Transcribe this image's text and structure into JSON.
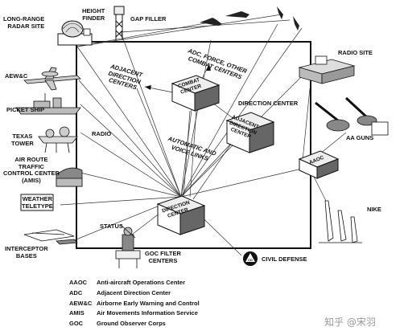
{
  "labels": {
    "long_range_radar": [
      "LONG-RANGE",
      "RADAR SITE"
    ],
    "height_finder": [
      "HEIGHT",
      "FINDER"
    ],
    "gap_filler": "GAP FILLER",
    "aew_c": "AEW&C",
    "picket_ship": "PICKET SHIP",
    "texas_tower": [
      "TEXAS",
      "TOWER"
    ],
    "air_route": [
      "AIR ROUTE",
      "TRAFFIC",
      "CONTROL CENTER",
      "(AMIS)"
    ],
    "weather_teletype": [
      "WEATHER",
      "TELETYPE"
    ],
    "interceptor_bases": [
      "INTERCEPTOR",
      "BASES"
    ],
    "radio": "RADIO",
    "status": "STATUS",
    "goc_filter": [
      "GOC FILTER",
      "CENTERS"
    ],
    "civil_defense": "CIVIL DEFENSE",
    "adjacent_direction_centers": [
      "ADJACENT",
      "DIRECTION",
      "CENTERS"
    ],
    "adc_force": [
      "ADC, FORCE, OTHER",
      "COMBAT CENTERS"
    ],
    "combat_center_box": [
      "COMBAT",
      "CENTER"
    ],
    "direction_center_label": "DIRECTION CENTER",
    "adjacent_direction_center_box": [
      "ADJACENT",
      "DIRECTION",
      "CENTER"
    ],
    "automatic_voice_links": [
      "AUTOMATIC AND",
      "VOICE LINKS"
    ],
    "direction_center_box": [
      "DIRECTION",
      "CENTER"
    ],
    "radio_site": "RADIO SITE",
    "aa_guns": "AA GUNS",
    "aaoc_box": "AAOC",
    "nike": "NIKE",
    "cd_emblem": "CD"
  },
  "legend": [
    {
      "abbr": "AAOC",
      "def": "Anti-aircraft Operations Center"
    },
    {
      "abbr": "ADC",
      "def": "Adjacent Direction Center"
    },
    {
      "abbr": "AEW&C",
      "def": "Airborne Early Warning and Control"
    },
    {
      "abbr": "AMIS",
      "def": "Air Movements Information Service"
    },
    {
      "abbr": "GOC",
      "def": "Ground Observer Corps"
    }
  ],
  "watermark": "知乎 @宋羽"
}
